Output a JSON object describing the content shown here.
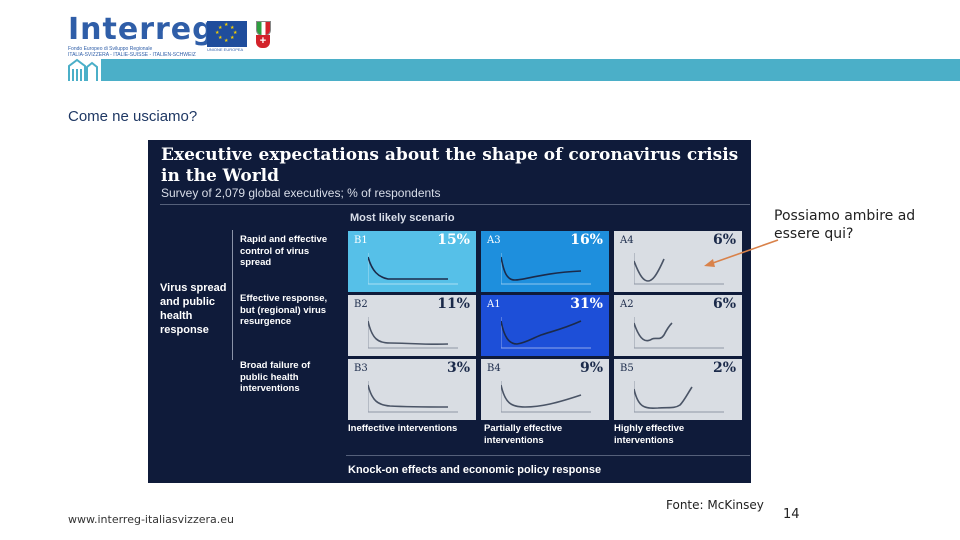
{
  "logo": {
    "wordmark": "Interreg",
    "subtitle_line1": "Fondo Europeo di Sviluppo Regionale",
    "subtitle_line2": "ITALIA-SVIZZERA - ITALIE-SUISSE - ITALIEN-SCHWEIZ",
    "eu_text": "UNIONE EUROPEA"
  },
  "colors": {
    "header_bar": "#4bafc8",
    "figure_bg": "#0f1b3a",
    "cell_light": "#d9dde3",
    "cell_cyan": "#56c0e8",
    "cell_blue": "#1e8fdd",
    "cell_deep": "#1d4fd8",
    "arrow": "#d9824a"
  },
  "slide": {
    "title": "Come ne usciamo?"
  },
  "figure": {
    "title": "Executive expectations about the shape of coronavirus crisis in the World",
    "subtitle": "Survey of 2,079 global executives; % of respondents",
    "most_likely": "Most likely scenario",
    "y_axis_label": "Virus spread and public health response",
    "x_axis_label": "Knock-on effects and economic policy response",
    "row_labels": [
      "Rapid and effective control of virus spread",
      "Effective response, but (regional) virus resurgence",
      "Broad failure of public health interventions"
    ],
    "col_labels": [
      "Ineffective interventions",
      "Partially effective interventions",
      "Highly effective interventions"
    ]
  },
  "chart_data": {
    "type": "table",
    "title": "Executive expectations about the shape of coronavirus crisis in the World",
    "subtitle": "Survey of 2,079 global executives; % of respondents",
    "rows": [
      "Rapid and effective control of virus spread",
      "Effective response, but (regional) virus resurgence",
      "Broad failure of public health interventions"
    ],
    "columns": [
      "Ineffective interventions",
      "Partially effective interventions",
      "Highly effective interventions"
    ],
    "cells": [
      [
        {
          "id": "B1",
          "value": "15%"
        },
        {
          "id": "A3",
          "value": "16%"
        },
        {
          "id": "A4",
          "value": "6%"
        }
      ],
      [
        {
          "id": "B2",
          "value": "11%"
        },
        {
          "id": "A1",
          "value": "31%"
        },
        {
          "id": "A2",
          "value": "6%"
        }
      ],
      [
        {
          "id": "B3",
          "value": "3%"
        },
        {
          "id": "B4",
          "value": "9%"
        },
        {
          "id": "B5",
          "value": "2%"
        }
      ]
    ],
    "highlighted_scenarios": [
      "B1",
      "A3",
      "A1"
    ]
  },
  "callout": {
    "text": "Possiamo ambire ad essere qui?"
  },
  "source": "Fonte: McKinsey",
  "footer": {
    "url": "www.interreg-italiasvizzera.eu",
    "page_number": "14"
  }
}
